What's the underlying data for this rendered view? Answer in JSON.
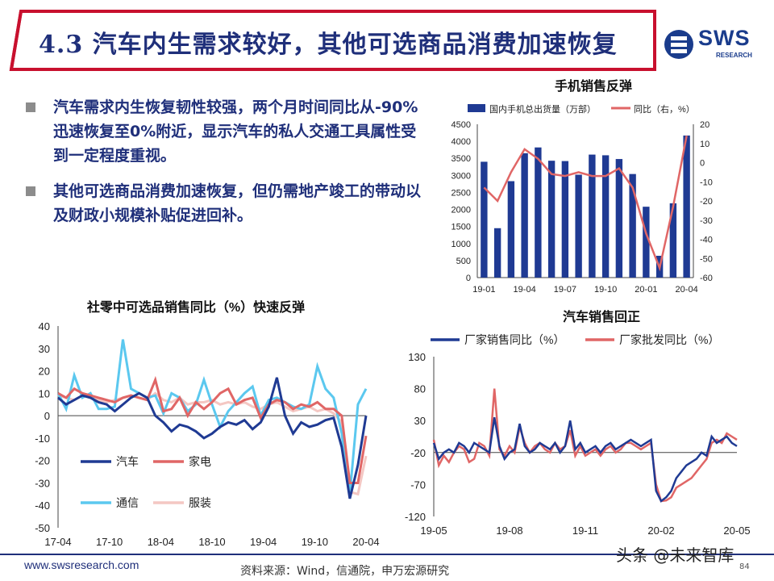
{
  "header": {
    "title": "4.3 汽车内生需求较好，其他可选商品消费加速恢复",
    "logo_text": "SWS",
    "logo_sub": "RESEARCH",
    "colors": {
      "title": "#1f2f7a",
      "accent_red": "#c8102e"
    }
  },
  "bullets": [
    "汽车需求内生恢复韧性较强，两个月时间同比从-90%迅速恢复至0%附近，显示汽车的私人交通工具属性受到一定程度重视。",
    "其他可选商品消费加速恢复，但仍需地产竣工的带动以及财政小规模补贴促进回补。"
  ],
  "chart_data": [
    {
      "type": "bar+line",
      "title": "手机销售反弹",
      "categories": [
        "19-01",
        "19-02",
        "19-03",
        "19-04",
        "19-05",
        "19-06",
        "19-07",
        "19-08",
        "19-09",
        "19-10",
        "19-11",
        "19-12",
        "20-01",
        "20-02",
        "20-03",
        "20-04"
      ],
      "xtick_labels": [
        "19-01",
        "19-04",
        "19-07",
        "19-10",
        "20-01",
        "20-04"
      ],
      "series": [
        {
          "name": "国内手机总出货量（万部）",
          "kind": "bar",
          "axis": "left",
          "color": "#1f3a93",
          "values": [
            3400,
            1450,
            2830,
            3650,
            3820,
            3430,
            3420,
            3020,
            3610,
            3590,
            3480,
            3040,
            2080,
            640,
            2180,
            4170
          ]
        },
        {
          "name": "同比（右，%）",
          "kind": "line",
          "axis": "right",
          "color": "#e06666",
          "values": [
            -13,
            -20,
            -5,
            7,
            2,
            -6,
            -7,
            -5,
            -7,
            -7,
            -3,
            -13,
            -37,
            -55,
            -23,
            14
          ]
        }
      ],
      "ylim_left": [
        0,
        4500
      ],
      "yticks_left": [
        0,
        500,
        1000,
        1500,
        2000,
        2500,
        3000,
        3500,
        4000,
        4500
      ],
      "ylim_right": [
        -60,
        20
      ],
      "yticks_right": [
        20,
        10,
        0,
        -10,
        -20,
        -30,
        -40,
        -50,
        -60
      ]
    },
    {
      "type": "line",
      "title": "社零中可选品销售同比（%）快速反弹",
      "x_start": "17-04",
      "xtick_labels": [
        "17-04",
        "17-10",
        "18-04",
        "18-10",
        "19-04",
        "19-10",
        "20-04"
      ],
      "ylim": [
        -50,
        40
      ],
      "yticks": [
        40,
        30,
        20,
        10,
        0,
        -10,
        -20,
        -30,
        -40,
        -50
      ],
      "series": [
        {
          "name": "汽车",
          "color": "#1f3a93",
          "values": [
            8,
            5,
            7,
            9,
            8,
            6,
            5,
            2,
            5,
            8,
            10,
            8,
            0,
            -3,
            -7,
            -4,
            -5,
            -7,
            -10,
            -8,
            -5,
            -3,
            -4,
            -2,
            -6,
            -3,
            4,
            17,
            0,
            -8,
            -3,
            -5,
            -4,
            -2,
            -1,
            -14,
            -37,
            -22,
            0
          ]
        },
        {
          "name": "家电",
          "color": "#e06666",
          "values": [
            10,
            8,
            12,
            10,
            9,
            8,
            7,
            6,
            8,
            9,
            8,
            7,
            16,
            2,
            3,
            8,
            0,
            6,
            3,
            6,
            10,
            12,
            5,
            7,
            8,
            -1,
            5,
            7,
            6,
            3,
            5,
            4,
            6,
            3,
            3,
            0,
            -30,
            -30,
            -9
          ]
        },
        {
          "name": "通信",
          "color": "#5bc8ef",
          "values": [
            10,
            3,
            18,
            8,
            10,
            3,
            3,
            4,
            34,
            12,
            10,
            8,
            9,
            1,
            10,
            8,
            2,
            5,
            16,
            5,
            -5,
            2,
            6,
            10,
            13,
            0,
            7,
            8,
            6,
            4,
            3,
            5,
            22,
            12,
            8,
            -8,
            -35,
            5,
            12
          ]
        },
        {
          "name": "服装",
          "color": "#f4c7c3",
          "values": [
            9,
            8,
            7,
            9,
            8,
            7,
            6,
            7,
            8,
            9,
            8,
            7,
            10,
            7,
            6,
            8,
            5,
            6,
            6,
            7,
            5,
            6,
            5,
            6,
            4,
            3,
            5,
            6,
            4,
            2,
            3,
            4,
            2,
            3,
            1,
            -3,
            -34,
            -35,
            -18
          ]
        }
      ]
    },
    {
      "type": "line",
      "title": "汽车销售回正",
      "x_start": "19-05",
      "xtick_labels": [
        "19-05",
        "19-08",
        "19-11",
        "20-02",
        "20-05"
      ],
      "ylim": [
        -120,
        130
      ],
      "yticks": [
        130,
        80,
        30,
        -20,
        -70,
        -120
      ],
      "series": [
        {
          "name": "厂家销售同比（%）",
          "color": "#1f3a93",
          "values": [
            -5,
            -30,
            -20,
            -15,
            -20,
            -5,
            -10,
            -20,
            -5,
            -10,
            -15,
            -20,
            35,
            -10,
            -30,
            -20,
            -15,
            25,
            -10,
            -20,
            -15,
            -5,
            -10,
            -15,
            -5,
            -20,
            -10,
            30,
            -15,
            -5,
            -20,
            -15,
            -10,
            -20,
            -10,
            -5,
            -15,
            -10,
            -5,
            0,
            -5,
            -10,
            -5,
            0,
            -80,
            -96,
            -90,
            -80,
            -60,
            -50,
            -40,
            -35,
            -30,
            -20,
            -25,
            5,
            -5,
            0,
            5,
            -5,
            -10
          ]
        },
        {
          "name": "厂家批发同比（%）",
          "color": "#e06666",
          "values": [
            0,
            -40,
            -25,
            -35,
            -20,
            -10,
            -15,
            -35,
            -30,
            -5,
            -10,
            -25,
            80,
            -15,
            -25,
            -10,
            -20,
            20,
            -5,
            -20,
            -10,
            -5,
            -15,
            -20,
            -5,
            -15,
            -10,
            15,
            -25,
            -10,
            -25,
            -20,
            -15,
            -25,
            -15,
            -10,
            -20,
            -15,
            -5,
            -5,
            -10,
            -15,
            -10,
            -5,
            -70,
            -96,
            -95,
            -90,
            -75,
            -70,
            -65,
            -60,
            -50,
            -40,
            -30,
            -5,
            0,
            -5,
            10,
            5,
            0
          ]
        }
      ]
    }
  ],
  "footer": {
    "url": "www.swsresearch.com",
    "source": "资料来源：Wind，信通院，申万宏源研究",
    "page": "84",
    "watermark": "头条 @未来智库"
  }
}
